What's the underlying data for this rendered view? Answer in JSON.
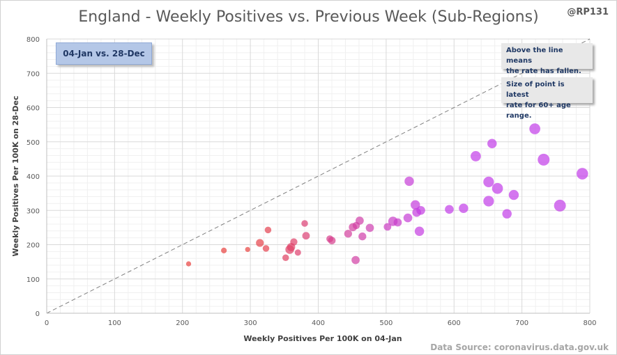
{
  "chart_data": {
    "type": "scatter",
    "title": "England - Weekly Positives vs. Previous Week (Sub-Regions)",
    "author": "@RP131",
    "source": "Data Source: coronavirus.data.gov.uk",
    "xlabel": "Weekly Positives Per 100K on 04-Jan",
    "ylabel": "Weekly Positives Per 100K on 28-Dec",
    "xlim": [
      0,
      800
    ],
    "ylim": [
      0,
      800
    ],
    "xticks": [
      "0",
      "100",
      "200",
      "300",
      "400",
      "500",
      "600",
      "700",
      "800"
    ],
    "yticks": [
      "0",
      "100",
      "200",
      "300",
      "400",
      "500",
      "600",
      "700",
      "800"
    ],
    "grid": true,
    "date_label": "04-Jan vs. 28-Dec",
    "annotations": [
      [
        "Above the line means",
        "the rate has fallen."
      ],
      [
        "Size of point is latest",
        "rate for 60+ age range."
      ]
    ],
    "reference_line": {
      "from": [
        0,
        0
      ],
      "to": [
        800,
        800
      ],
      "style": "dashed"
    },
    "colors": {
      "low": "#e8413f",
      "high": "#c23ce8"
    },
    "points": [
      {
        "x": 209,
        "y": 144,
        "size": 280
      },
      {
        "x": 261,
        "y": 183,
        "size": 300
      },
      {
        "x": 296,
        "y": 186,
        "size": 280
      },
      {
        "x": 314,
        "y": 205,
        "size": 370
      },
      {
        "x": 323,
        "y": 189,
        "size": 330
      },
      {
        "x": 326,
        "y": 243,
        "size": 330
      },
      {
        "x": 352,
        "y": 162,
        "size": 330
      },
      {
        "x": 358,
        "y": 186,
        "size": 400
      },
      {
        "x": 360,
        "y": 193,
        "size": 380
      },
      {
        "x": 364,
        "y": 208,
        "size": 350
      },
      {
        "x": 370,
        "y": 177,
        "size": 320
      },
      {
        "x": 380,
        "y": 262,
        "size": 330
      },
      {
        "x": 382,
        "y": 226,
        "size": 360
      },
      {
        "x": 417,
        "y": 217,
        "size": 340
      },
      {
        "x": 420,
        "y": 212,
        "size": 360
      },
      {
        "x": 444,
        "y": 232,
        "size": 370
      },
      {
        "x": 451,
        "y": 251,
        "size": 380
      },
      {
        "x": 455,
        "y": 155,
        "size": 380
      },
      {
        "x": 456,
        "y": 256,
        "size": 350
      },
      {
        "x": 461,
        "y": 270,
        "size": 380
      },
      {
        "x": 465,
        "y": 224,
        "size": 370
      },
      {
        "x": 476,
        "y": 249,
        "size": 380
      },
      {
        "x": 502,
        "y": 252,
        "size": 360
      },
      {
        "x": 510,
        "y": 268,
        "size": 420
      },
      {
        "x": 517,
        "y": 265,
        "size": 380
      },
      {
        "x": 532,
        "y": 278,
        "size": 400
      },
      {
        "x": 534,
        "y": 385,
        "size": 420
      },
      {
        "x": 543,
        "y": 316,
        "size": 420
      },
      {
        "x": 545,
        "y": 294,
        "size": 400
      },
      {
        "x": 549,
        "y": 239,
        "size": 420
      },
      {
        "x": 551,
        "y": 300,
        "size": 400
      },
      {
        "x": 593,
        "y": 303,
        "size": 400
      },
      {
        "x": 614,
        "y": 306,
        "size": 420
      },
      {
        "x": 632,
        "y": 458,
        "size": 450
      },
      {
        "x": 651,
        "y": 383,
        "size": 460
      },
      {
        "x": 651,
        "y": 327,
        "size": 460
      },
      {
        "x": 656,
        "y": 495,
        "size": 420
      },
      {
        "x": 664,
        "y": 364,
        "size": 470
      },
      {
        "x": 678,
        "y": 290,
        "size": 420
      },
      {
        "x": 688,
        "y": 345,
        "size": 440
      },
      {
        "x": 719,
        "y": 538,
        "size": 470
      },
      {
        "x": 732,
        "y": 448,
        "size": 500
      },
      {
        "x": 756,
        "y": 314,
        "size": 500
      },
      {
        "x": 789,
        "y": 407,
        "size": 490
      }
    ]
  }
}
